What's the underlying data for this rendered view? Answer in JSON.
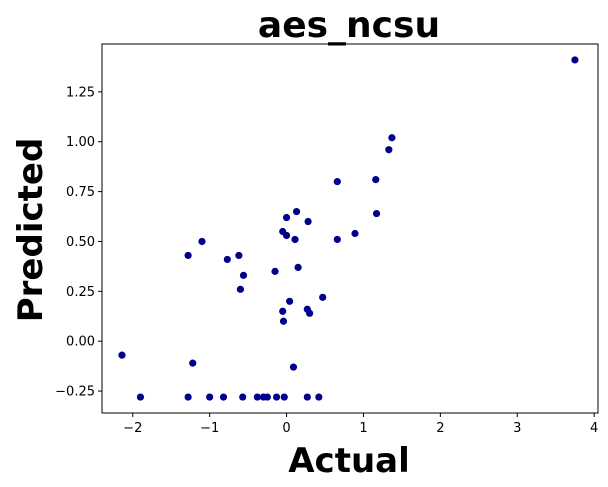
{
  "chart_data": {
    "type": "scatter",
    "title": "aes_ncsu",
    "xlabel": "Actual",
    "ylabel": "Predicted",
    "xlim": [
      -2.4,
      4.05
    ],
    "ylim": [
      -0.36,
      1.49
    ],
    "xticks": [
      -2,
      -1,
      0,
      1,
      2,
      3,
      4
    ],
    "xtick_labels": [
      "−2",
      "−1",
      "0",
      "1",
      "2",
      "3",
      "4"
    ],
    "yticks": [
      -0.25,
      0.0,
      0.25,
      0.5,
      0.75,
      1.0,
      1.25
    ],
    "ytick_labels": [
      "−0.25",
      "0.00",
      "0.25",
      "0.50",
      "0.75",
      "1.00",
      "1.25"
    ],
    "grid": false,
    "legend": "none",
    "point_color": "#00008b",
    "points": [
      {
        "x": -2.14,
        "y": -0.07
      },
      {
        "x": -1.9,
        "y": -0.28
      },
      {
        "x": -1.28,
        "y": 0.43
      },
      {
        "x": -1.28,
        "y": -0.28
      },
      {
        "x": -1.22,
        "y": -0.11
      },
      {
        "x": -1.1,
        "y": 0.5
      },
      {
        "x": -1.0,
        "y": -0.28
      },
      {
        "x": -0.82,
        "y": -0.28
      },
      {
        "x": -0.77,
        "y": 0.41
      },
      {
        "x": -0.62,
        "y": 0.43
      },
      {
        "x": -0.6,
        "y": 0.26
      },
      {
        "x": -0.56,
        "y": 0.33
      },
      {
        "x": -0.57,
        "y": -0.28
      },
      {
        "x": -0.38,
        "y": -0.28
      },
      {
        "x": -0.3,
        "y": -0.28
      },
      {
        "x": -0.25,
        "y": -0.28
      },
      {
        "x": -0.15,
        "y": 0.35
      },
      {
        "x": -0.13,
        "y": -0.28
      },
      {
        "x": -0.05,
        "y": 0.55
      },
      {
        "x": -0.05,
        "y": 0.15
      },
      {
        "x": -0.04,
        "y": 0.1
      },
      {
        "x": -0.03,
        "y": -0.28
      },
      {
        "x": 0.0,
        "y": 0.53
      },
      {
        "x": 0.0,
        "y": 0.62
      },
      {
        "x": 0.04,
        "y": 0.2
      },
      {
        "x": 0.09,
        "y": -0.13
      },
      {
        "x": 0.11,
        "y": 0.51
      },
      {
        "x": 0.13,
        "y": 0.65
      },
      {
        "x": 0.15,
        "y": 0.37
      },
      {
        "x": 0.27,
        "y": 0.16
      },
      {
        "x": 0.28,
        "y": 0.6
      },
      {
        "x": 0.3,
        "y": 0.14
      },
      {
        "x": 0.27,
        "y": -0.28
      },
      {
        "x": 0.42,
        "y": -0.28
      },
      {
        "x": 0.47,
        "y": 0.22
      },
      {
        "x": 0.66,
        "y": 0.8
      },
      {
        "x": 0.66,
        "y": 0.51
      },
      {
        "x": 0.89,
        "y": 0.54
      },
      {
        "x": 1.16,
        "y": 0.81
      },
      {
        "x": 1.17,
        "y": 0.64
      },
      {
        "x": 1.33,
        "y": 0.96
      },
      {
        "x": 1.37,
        "y": 1.02
      },
      {
        "x": 3.75,
        "y": 1.41
      }
    ]
  }
}
